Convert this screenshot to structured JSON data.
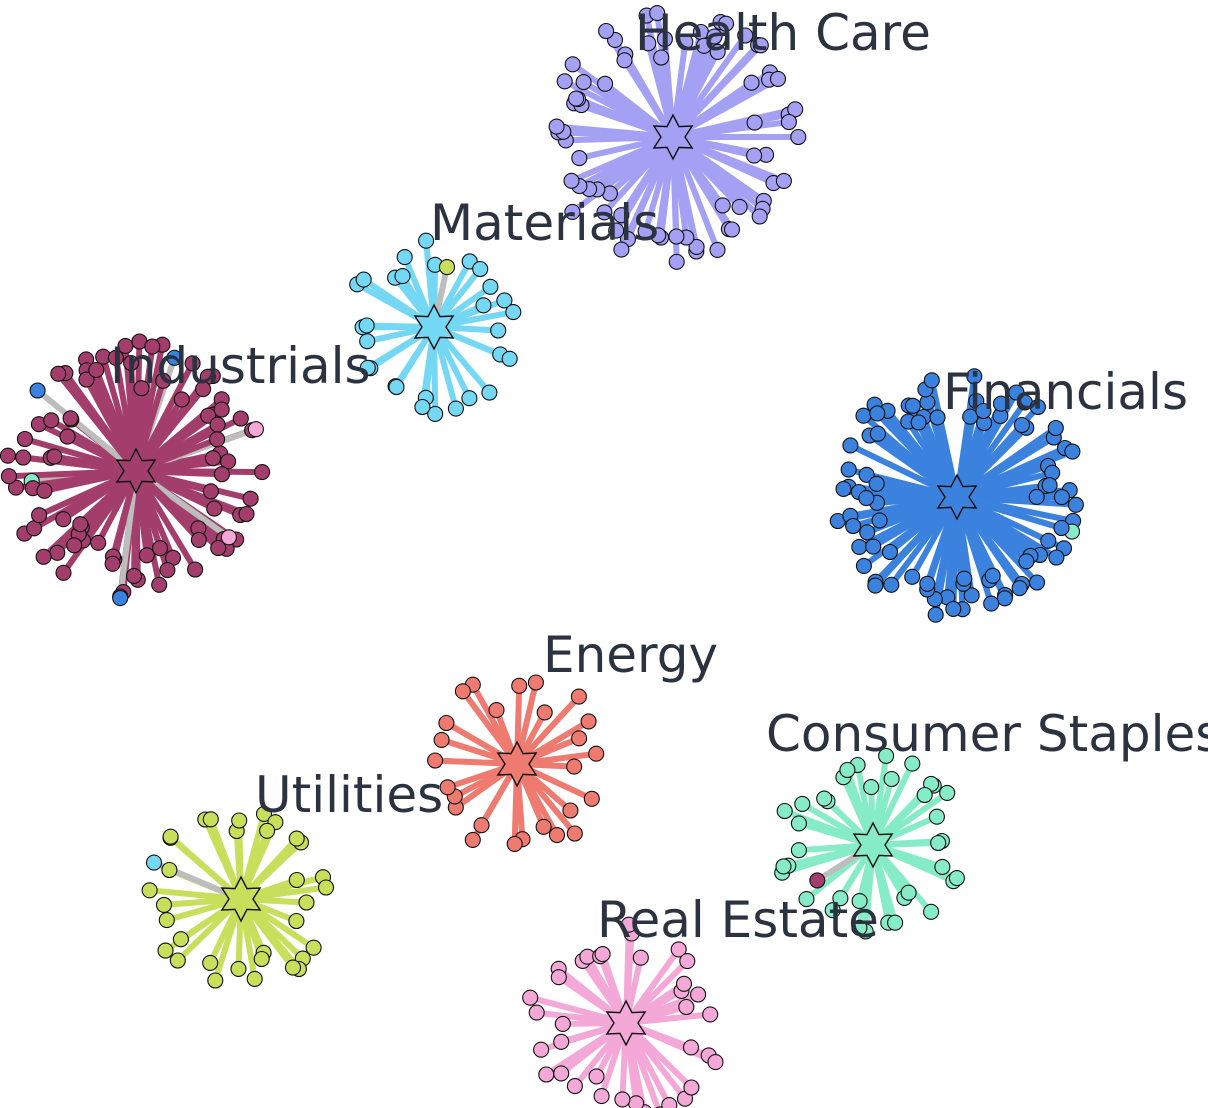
{
  "chart_data": {
    "type": "network",
    "title": "",
    "clusters": [
      {
        "name": "Health Care",
        "color": "#a4a0f4",
        "node_count": 72,
        "foreign_nodes": []
      },
      {
        "name": "Materials",
        "color": "#74d8f4",
        "node_count": 30,
        "foreign_nodes": [
          "Utilities"
        ]
      },
      {
        "name": "Industrials",
        "color": "#a33e6c",
        "node_count": 90,
        "foreign_nodes": [
          "Consumer Staples",
          "Financials",
          "Financials",
          "Real Estate",
          "Real Estate",
          "Financials"
        ]
      },
      {
        "name": "Financials",
        "color": "#3a82de",
        "node_count": 88,
        "foreign_nodes": [
          "Consumer Staples"
        ]
      },
      {
        "name": "Energy",
        "color": "#ef7a70",
        "node_count": 26,
        "foreign_nodes": []
      },
      {
        "name": "Consumer Staples",
        "color": "#86ecc8",
        "node_count": 38,
        "foreign_nodes": [
          "Industrials"
        ]
      },
      {
        "name": "Utilities",
        "color": "#c8df5c",
        "node_count": 34,
        "foreign_nodes": [
          "Materials"
        ]
      },
      {
        "name": "Real Estate",
        "color": "#f4a8d8",
        "node_count": 36,
        "foreign_nodes": []
      }
    ],
    "edge_color_cross_sector": "#bdbdbd",
    "node_outline_color": "#111111",
    "hub_marker": "star"
  }
}
